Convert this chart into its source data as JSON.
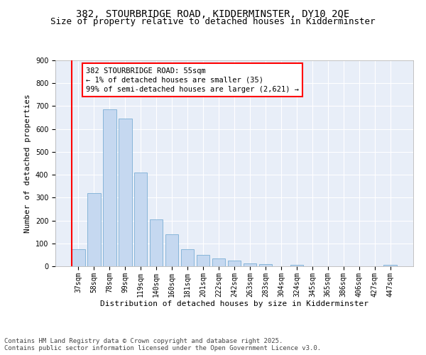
{
  "title1": "382, STOURBRIDGE ROAD, KIDDERMINSTER, DY10 2QE",
  "title2": "Size of property relative to detached houses in Kidderminster",
  "xlabel": "Distribution of detached houses by size in Kidderminster",
  "ylabel": "Number of detached properties",
  "categories": [
    "37sqm",
    "58sqm",
    "78sqm",
    "99sqm",
    "119sqm",
    "140sqm",
    "160sqm",
    "181sqm",
    "201sqm",
    "222sqm",
    "242sqm",
    "263sqm",
    "283sqm",
    "304sqm",
    "324sqm",
    "345sqm",
    "365sqm",
    "386sqm",
    "406sqm",
    "427sqm",
    "447sqm"
  ],
  "values": [
    75,
    320,
    685,
    645,
    410,
    205,
    140,
    75,
    50,
    35,
    25,
    12,
    8,
    0,
    5,
    0,
    0,
    0,
    0,
    0,
    5
  ],
  "bar_color": "#c5d8f0",
  "bar_edge_color": "#7baed4",
  "highlight_color": "#ff0000",
  "annotation_box_text": "382 STOURBRIDGE ROAD: 55sqm\n← 1% of detached houses are smaller (35)\n99% of semi-detached houses are larger (2,621) →",
  "ylim": [
    0,
    900
  ],
  "yticks": [
    0,
    100,
    200,
    300,
    400,
    500,
    600,
    700,
    800,
    900
  ],
  "background_color": "#e8eef8",
  "grid_color": "#ffffff",
  "footer_text": "Contains HM Land Registry data © Crown copyright and database right 2025.\nContains public sector information licensed under the Open Government Licence v3.0.",
  "title_fontsize": 10,
  "subtitle_fontsize": 9,
  "axis_label_fontsize": 8,
  "tick_fontsize": 7,
  "footer_fontsize": 6.5,
  "annot_fontsize": 7.5
}
